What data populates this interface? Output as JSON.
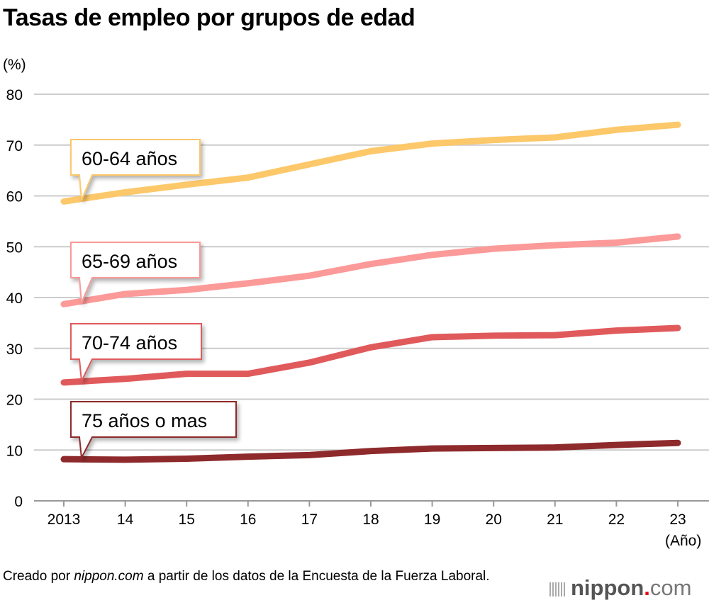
{
  "chart_data": {
    "type": "line",
    "title": "Tasas de empleo por grupos de edad",
    "ylabel": "(%)",
    "xlabel": "(Año)",
    "ylim": [
      0,
      80
    ],
    "yticks": [
      "0",
      "10",
      "20",
      "30",
      "40",
      "50",
      "60",
      "70",
      "80"
    ],
    "categories": [
      "2013",
      "14",
      "15",
      "16",
      "17",
      "18",
      "19",
      "20",
      "21",
      "22",
      "23"
    ],
    "grid": true,
    "series": [
      {
        "name": "60-64 años",
        "color": "#fcc86a",
        "values": [
          58.9,
          60.7,
          62.2,
          63.6,
          66.2,
          68.8,
          70.3,
          71.0,
          71.5,
          73.0,
          74.0
        ]
      },
      {
        "name": "65-69 años",
        "color": "#fb9a98",
        "values": [
          38.7,
          40.7,
          41.5,
          42.8,
          44.3,
          46.6,
          48.4,
          49.6,
          50.3,
          50.8,
          52.0
        ]
      },
      {
        "name": "70-74 años",
        "color": "#e05a5c",
        "values": [
          23.3,
          24.0,
          25.0,
          25.0,
          27.2,
          30.2,
          32.2,
          32.5,
          32.6,
          33.5,
          34.0
        ]
      },
      {
        "name": "75 años o mas",
        "color": "#8e2a2c",
        "values": [
          8.2,
          8.1,
          8.3,
          8.7,
          9.0,
          9.8,
          10.3,
          10.4,
          10.5,
          11.0,
          11.4
        ]
      }
    ]
  },
  "footer": {
    "source_prefix": "Creado por ",
    "source_site": "nippon.com",
    "source_suffix": " a partir de los datos de la Encuesta de la Fuerza Laboral.",
    "logo": "nippon.com"
  }
}
